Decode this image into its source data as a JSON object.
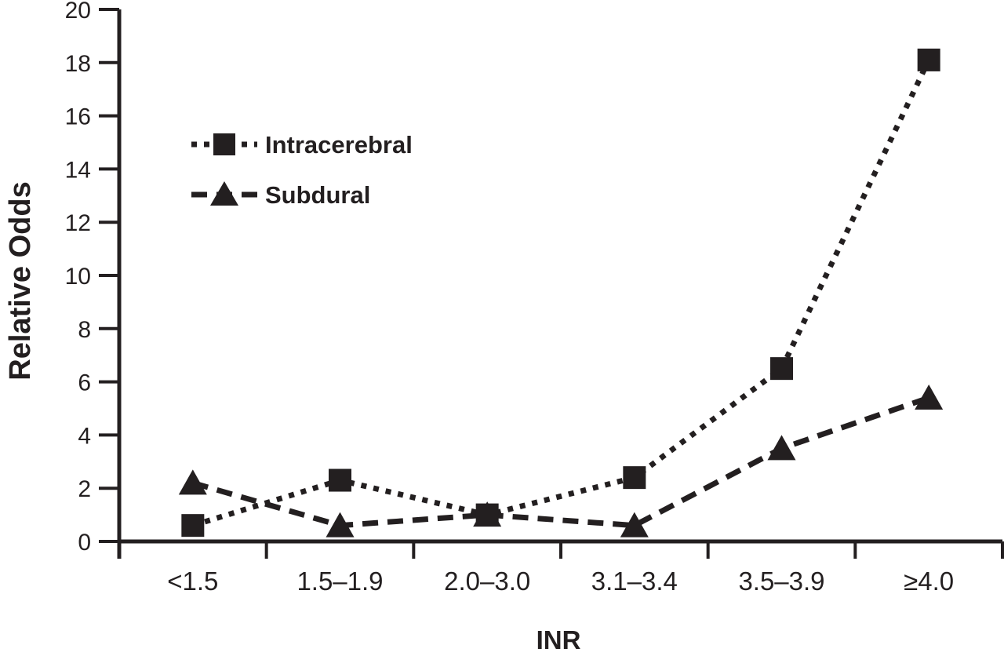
{
  "figure": {
    "background_color": "#ffffff",
    "ink_color": "#231f20"
  },
  "chart_data": {
    "type": "line",
    "title": "",
    "xlabel": "INR",
    "ylabel": "Relative Odds",
    "categories": [
      "<1.5",
      "1.5–1.9",
      "2.0–3.0",
      "3.1–3.4",
      "3.5–3.9",
      "≥4.0"
    ],
    "series": [
      {
        "name": "Intracerebral",
        "marker": "square",
        "line_style": "dotted",
        "values": [
          0.6,
          2.3,
          1.0,
          2.4,
          6.5,
          18.1
        ]
      },
      {
        "name": "Subdural",
        "marker": "triangle",
        "line_style": "dashed",
        "values": [
          2.2,
          0.6,
          1.0,
          0.6,
          3.5,
          5.4
        ]
      }
    ],
    "ylim": [
      0,
      20
    ],
    "yticks": [
      0,
      2,
      4,
      6,
      8,
      10,
      12,
      14,
      16,
      18,
      20
    ],
    "grid": false,
    "legend_position": "upper-left-inside"
  }
}
